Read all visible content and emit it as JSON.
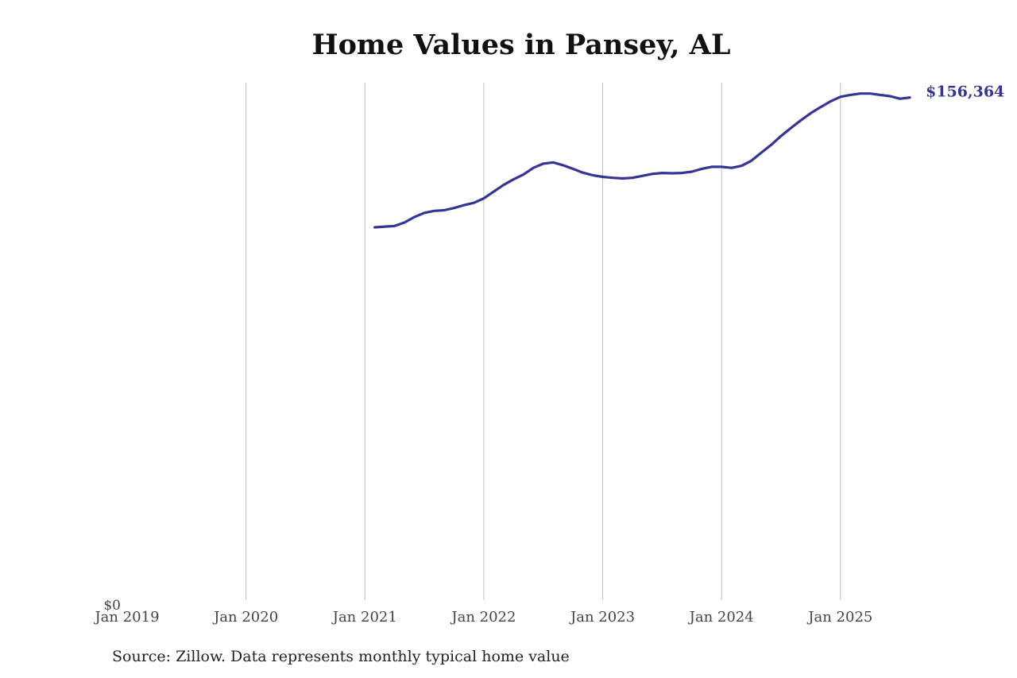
{
  "chart_data": {
    "type": "line",
    "title": "Home Values in Pansey, AL",
    "source": "Source: Zillow. Data represents monthly typical home value",
    "x_ticks": [
      "Jan 2019",
      "Jan 2020",
      "Jan 2021",
      "Jan 2022",
      "Jan 2023",
      "Jan 2024",
      "Jan 2025"
    ],
    "xlim": [
      "2019-01",
      "2025-12"
    ],
    "y_tick_labels": [
      "$0"
    ],
    "ylim": [
      0,
      161000
    ],
    "grid": "vertical",
    "line_color": "#353597",
    "end_label": "$156,364",
    "series": [
      {
        "points": [
          [
            "2021-02",
            116000
          ],
          [
            "2021-03",
            116200
          ],
          [
            "2021-04",
            116400
          ],
          [
            "2021-05",
            117500
          ],
          [
            "2021-06",
            119200
          ],
          [
            "2021-07",
            120500
          ],
          [
            "2021-08",
            121100
          ],
          [
            "2021-09",
            121300
          ],
          [
            "2021-10",
            122000
          ],
          [
            "2021-11",
            122900
          ],
          [
            "2021-12",
            123600
          ],
          [
            "2022-01",
            125000
          ],
          [
            "2022-02",
            127100
          ],
          [
            "2022-03",
            129200
          ],
          [
            "2022-04",
            130900
          ],
          [
            "2022-05",
            132400
          ],
          [
            "2022-06",
            134500
          ],
          [
            "2022-07",
            135800
          ],
          [
            "2022-08",
            136200
          ],
          [
            "2022-09",
            135300
          ],
          [
            "2022-10",
            134200
          ],
          [
            "2022-11",
            133000
          ],
          [
            "2022-12",
            132200
          ],
          [
            "2023-01",
            131700
          ],
          [
            "2023-02",
            131400
          ],
          [
            "2023-03",
            131200
          ],
          [
            "2023-04",
            131400
          ],
          [
            "2023-05",
            132000
          ],
          [
            "2023-06",
            132600
          ],
          [
            "2023-07",
            132900
          ],
          [
            "2023-08",
            132800
          ],
          [
            "2023-09",
            132900
          ],
          [
            "2023-10",
            133300
          ],
          [
            "2023-11",
            134200
          ],
          [
            "2023-12",
            134800
          ],
          [
            "2024-01",
            134800
          ],
          [
            "2024-02",
            134500
          ],
          [
            "2024-03",
            135100
          ],
          [
            "2024-04",
            136700
          ],
          [
            "2024-05",
            139200
          ],
          [
            "2024-06",
            141600
          ],
          [
            "2024-07",
            144400
          ],
          [
            "2024-08",
            146900
          ],
          [
            "2024-09",
            149300
          ],
          [
            "2024-10",
            151500
          ],
          [
            "2024-11",
            153400
          ],
          [
            "2024-12",
            155200
          ],
          [
            "2025-01",
            156600
          ],
          [
            "2025-02",
            157200
          ],
          [
            "2025-03",
            157600
          ],
          [
            "2025-04",
            157600
          ],
          [
            "2025-05",
            157200
          ],
          [
            "2025-06",
            156800
          ],
          [
            "2025-07",
            156000
          ],
          [
            "2025-08",
            156364
          ]
        ]
      }
    ]
  }
}
